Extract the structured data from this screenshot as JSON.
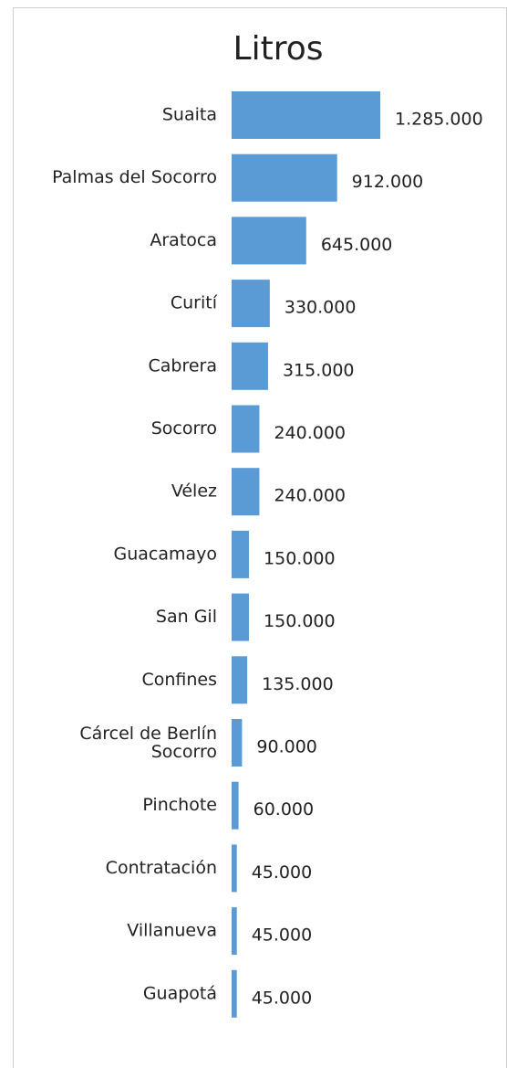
{
  "chart_data": {
    "type": "bar",
    "orientation": "horizontal",
    "title": "Litros",
    "categories": [
      "Suaita",
      "Palmas del Socorro",
      "Aratoca",
      "Curití",
      "Cabrera",
      "Socorro",
      "Vélez",
      "Guacamayo",
      "San Gil",
      "Confines",
      "Cárcel de Berlín\nSocorro",
      "Pinchote",
      "Contratación",
      "Villanueva",
      "Guapotá"
    ],
    "values": [
      1285000,
      912000,
      645000,
      330000,
      315000,
      240000,
      240000,
      150000,
      150000,
      135000,
      90000,
      60000,
      45000,
      45000,
      45000
    ],
    "value_labels": [
      "1.285.000",
      "912.000",
      "645.000",
      "330.000",
      "315.000",
      "240.000",
      "240.000",
      "150.000",
      "150.000",
      "135.000",
      "90.000",
      "60.000",
      "45.000",
      "45.000",
      "45.000"
    ],
    "color": "#5b9bd5"
  }
}
